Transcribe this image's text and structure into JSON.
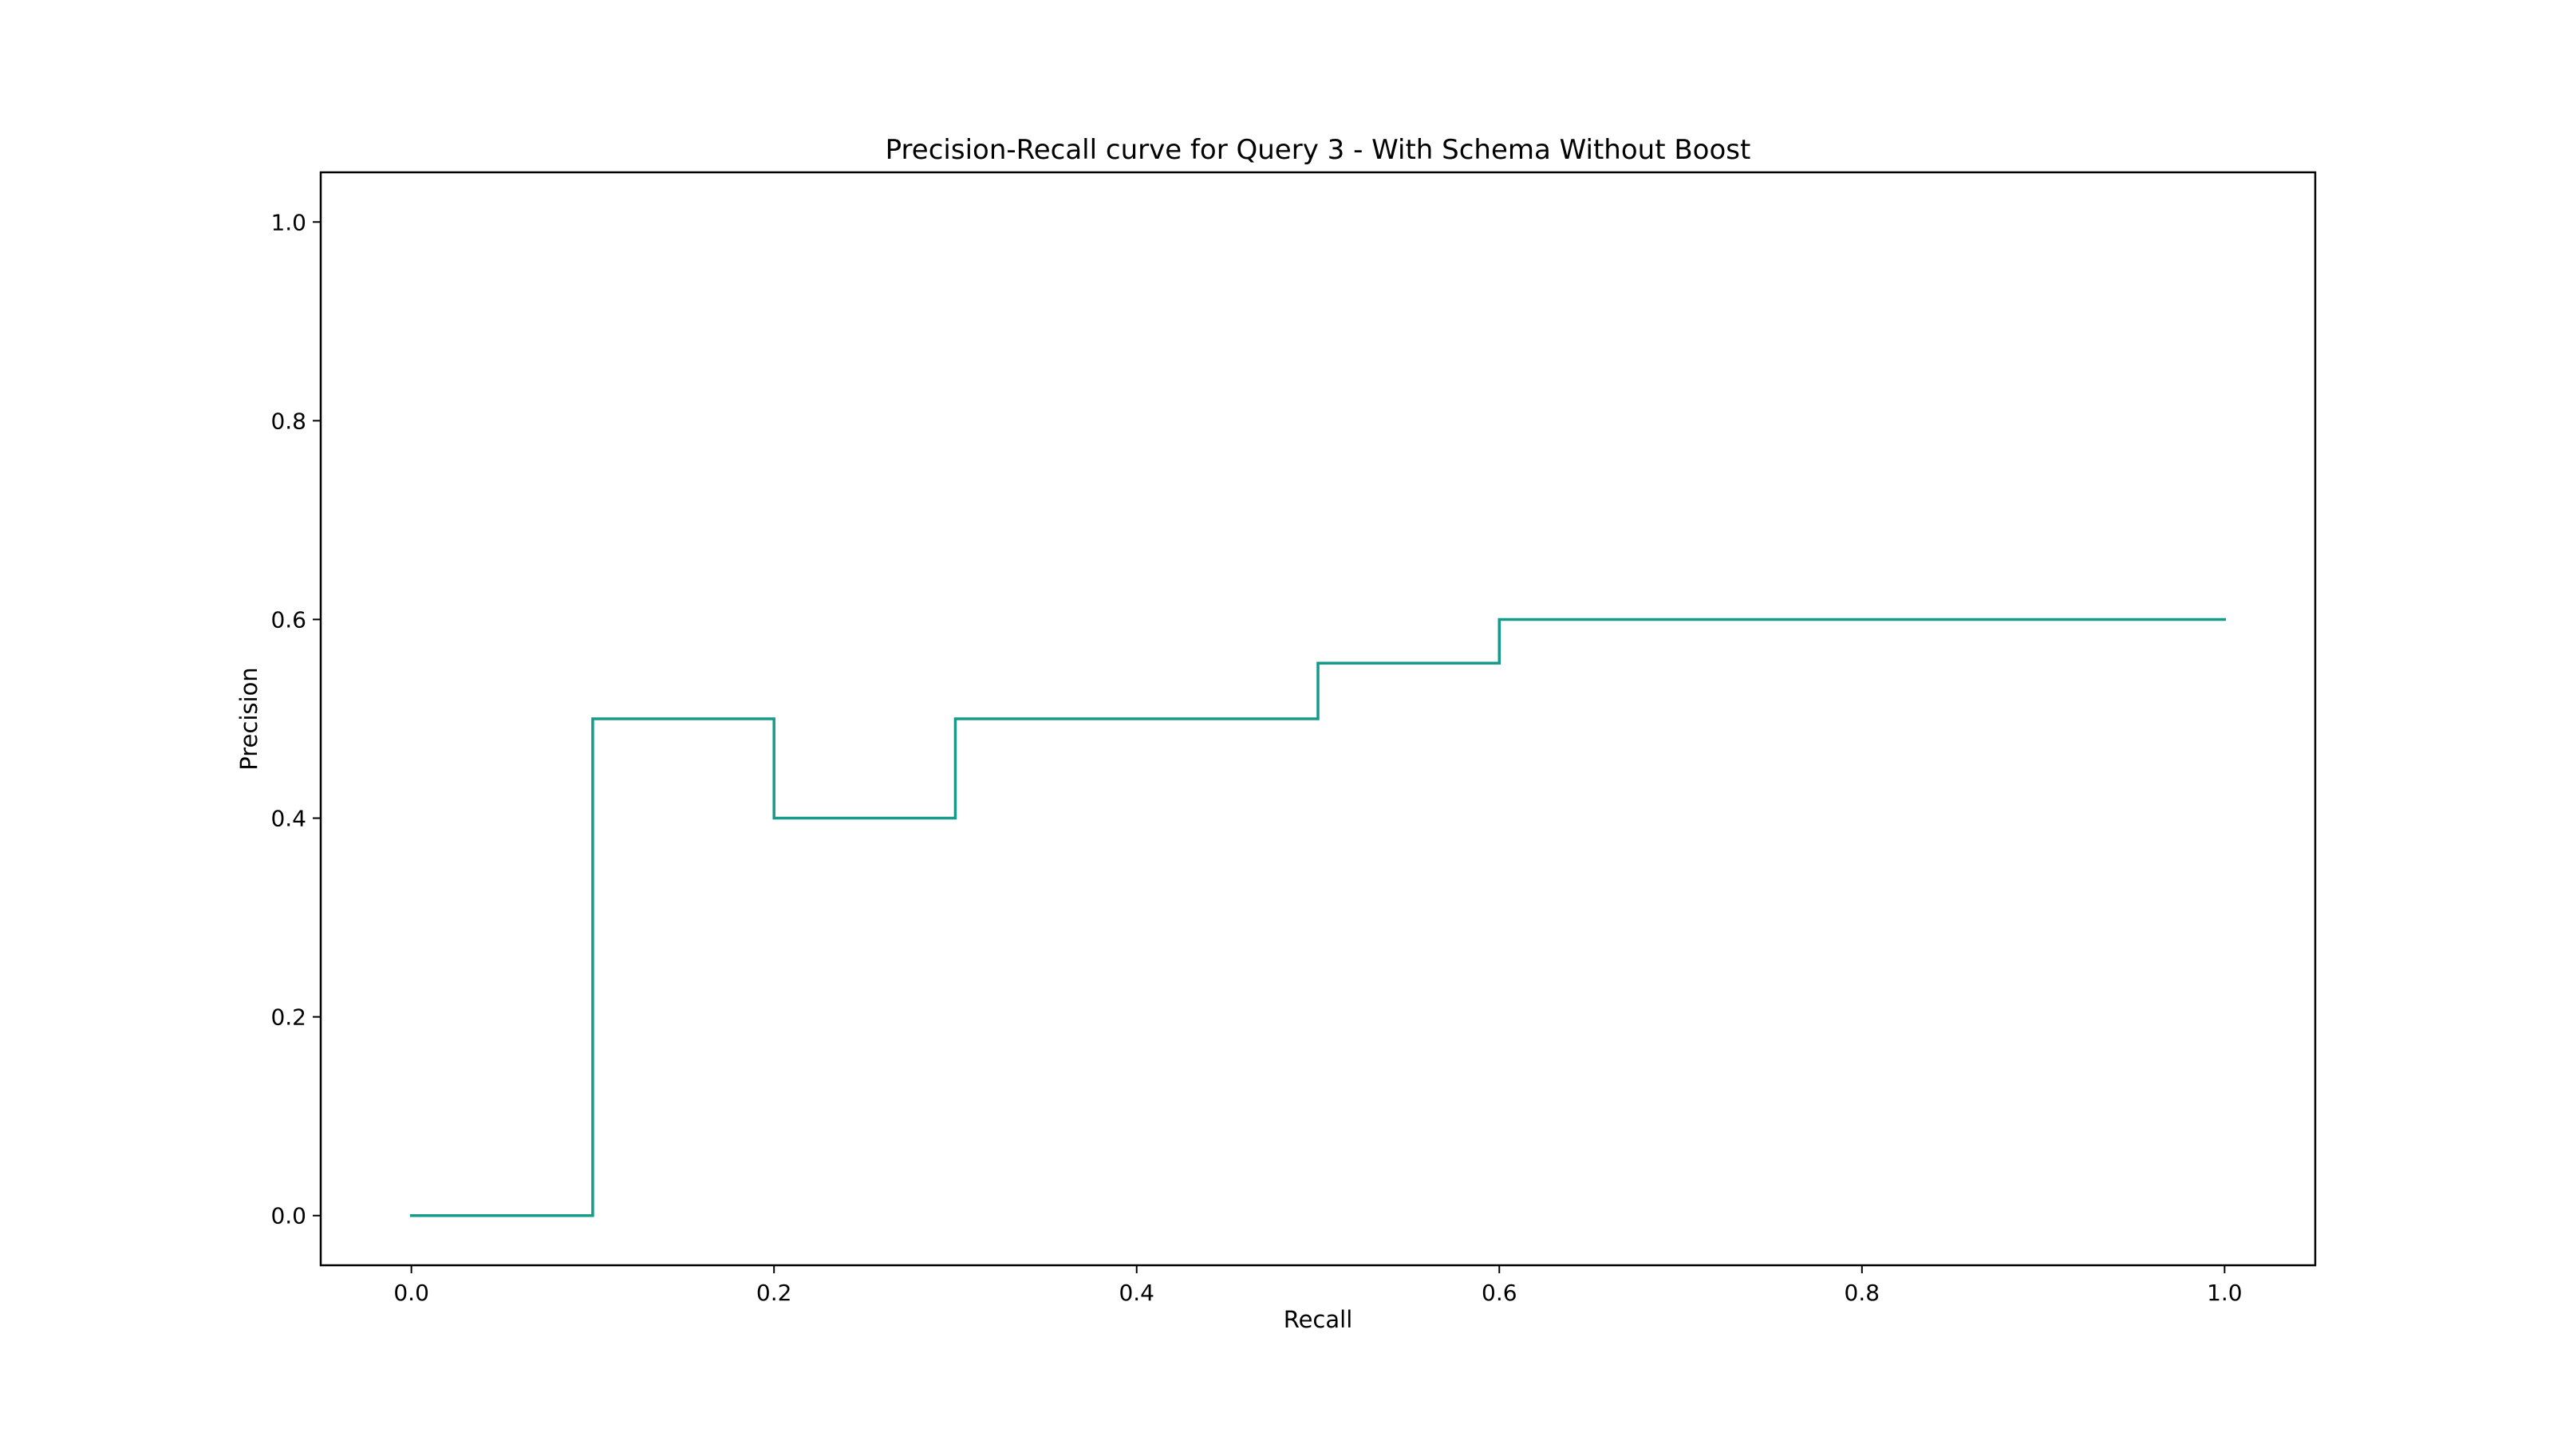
{
  "chart_data": {
    "type": "line",
    "title": "Precision-Recall curve for Query 3 - With Schema Without Boost",
    "xlabel": "Recall",
    "ylabel": "Precision",
    "xlim": [
      -0.05,
      1.05
    ],
    "ylim": [
      -0.05,
      1.05
    ],
    "grid": false,
    "step": "post",
    "x_ticks": [
      0.0,
      0.2,
      0.4,
      0.6,
      0.8,
      1.0
    ],
    "x_tick_labels": [
      "0.0",
      "0.2",
      "0.4",
      "0.6",
      "0.8",
      "1.0"
    ],
    "y_ticks": [
      0.0,
      0.2,
      0.4,
      0.6,
      0.8,
      1.0
    ],
    "y_tick_labels": [
      "0.0",
      "0.2",
      "0.4",
      "0.6",
      "0.8",
      "1.0"
    ],
    "series": [
      {
        "color": "#169b8a",
        "x": [
          0.0,
          0.1,
          0.2,
          0.3,
          0.4,
          0.5,
          0.6,
          0.7,
          0.8,
          0.9,
          1.0
        ],
        "y": [
          0.0,
          0.5,
          0.4,
          0.5,
          0.5,
          0.556,
          0.6,
          0.6,
          0.6,
          0.6,
          0.6
        ]
      }
    ]
  }
}
